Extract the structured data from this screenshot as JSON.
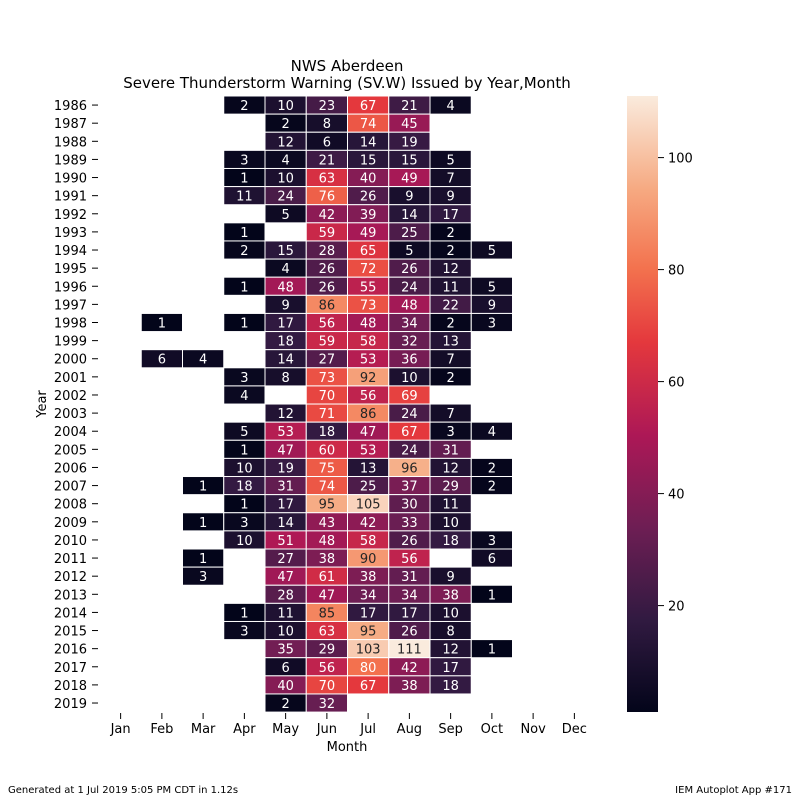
{
  "chart_data": {
    "type": "heatmap",
    "title": "NWS Aberdeen",
    "subtitle": "Severe Thunderstorm Warning (SV.W) Issued by Year,Month",
    "xlabel": "Month",
    "ylabel": "Year",
    "x_categories": [
      "Jan",
      "Feb",
      "Mar",
      "Apr",
      "May",
      "Jun",
      "Jul",
      "Aug",
      "Sep",
      "Oct",
      "Nov",
      "Dec"
    ],
    "y_categories": [
      "1986",
      "1987",
      "1988",
      "1989",
      "1990",
      "1991",
      "1992",
      "1993",
      "1994",
      "1995",
      "1996",
      "1997",
      "1998",
      "1999",
      "2000",
      "2001",
      "2002",
      "2003",
      "2004",
      "2005",
      "2006",
      "2007",
      "2008",
      "2009",
      "2010",
      "2011",
      "2012",
      "2013",
      "2014",
      "2015",
      "2016",
      "2017",
      "2018",
      "2019"
    ],
    "values": [
      [
        null,
        null,
        null,
        2,
        10,
        23,
        67,
        21,
        4,
        null,
        null,
        null
      ],
      [
        null,
        null,
        null,
        null,
        2,
        8,
        74,
        45,
        null,
        null,
        null,
        null
      ],
      [
        null,
        null,
        null,
        null,
        12,
        6,
        14,
        19,
        null,
        null,
        null,
        null
      ],
      [
        null,
        null,
        null,
        3,
        4,
        21,
        15,
        15,
        5,
        null,
        null,
        null
      ],
      [
        null,
        null,
        null,
        1,
        10,
        63,
        40,
        49,
        7,
        null,
        null,
        null
      ],
      [
        null,
        null,
        null,
        11,
        24,
        76,
        26,
        9,
        9,
        null,
        null,
        null
      ],
      [
        null,
        null,
        null,
        null,
        5,
        42,
        39,
        14,
        17,
        null,
        null,
        null
      ],
      [
        null,
        null,
        null,
        1,
        null,
        59,
        49,
        25,
        2,
        null,
        null,
        null
      ],
      [
        null,
        null,
        null,
        2,
        15,
        28,
        65,
        5,
        2,
        5,
        null,
        null
      ],
      [
        null,
        null,
        null,
        null,
        4,
        26,
        72,
        26,
        12,
        null,
        null,
        null
      ],
      [
        null,
        null,
        null,
        1,
        48,
        26,
        55,
        24,
        11,
        5,
        null,
        null
      ],
      [
        null,
        null,
        null,
        null,
        9,
        86,
        73,
        48,
        22,
        9,
        null,
        null
      ],
      [
        null,
        1,
        null,
        1,
        17,
        56,
        48,
        34,
        2,
        3,
        null,
        null
      ],
      [
        null,
        null,
        null,
        null,
        18,
        59,
        58,
        32,
        13,
        null,
        null,
        null
      ],
      [
        null,
        6,
        4,
        null,
        14,
        27,
        53,
        36,
        7,
        null,
        null,
        null
      ],
      [
        null,
        null,
        null,
        3,
        8,
        73,
        92,
        10,
        2,
        null,
        null,
        null
      ],
      [
        null,
        null,
        null,
        4,
        null,
        70,
        56,
        69,
        null,
        null,
        null,
        null
      ],
      [
        null,
        null,
        null,
        null,
        12,
        71,
        86,
        24,
        7,
        null,
        null,
        null
      ],
      [
        null,
        null,
        null,
        5,
        53,
        18,
        47,
        67,
        3,
        4,
        null,
        null
      ],
      [
        null,
        null,
        null,
        1,
        47,
        60,
        53,
        24,
        31,
        null,
        null,
        null
      ],
      [
        null,
        null,
        null,
        10,
        19,
        75,
        13,
        96,
        12,
        2,
        null,
        null
      ],
      [
        null,
        null,
        1,
        18,
        31,
        74,
        25,
        37,
        29,
        2,
        null,
        null
      ],
      [
        null,
        null,
        null,
        1,
        17,
        95,
        105,
        30,
        11,
        null,
        null,
        null
      ],
      [
        null,
        null,
        1,
        3,
        14,
        43,
        42,
        33,
        10,
        null,
        null,
        null
      ],
      [
        null,
        null,
        null,
        10,
        51,
        48,
        58,
        26,
        18,
        3,
        null,
        null
      ],
      [
        null,
        null,
        1,
        null,
        27,
        38,
        90,
        56,
        null,
        6,
        null,
        null
      ],
      [
        null,
        null,
        3,
        null,
        47,
        61,
        38,
        31,
        9,
        null,
        null,
        null
      ],
      [
        null,
        null,
        null,
        null,
        28,
        47,
        34,
        34,
        38,
        1,
        null,
        null
      ],
      [
        null,
        null,
        null,
        1,
        11,
        85,
        17,
        17,
        10,
        null,
        null,
        null
      ],
      [
        null,
        null,
        null,
        3,
        10,
        63,
        95,
        26,
        8,
        null,
        null,
        null
      ],
      [
        null,
        null,
        null,
        null,
        35,
        29,
        103,
        111,
        12,
        1,
        null,
        null
      ],
      [
        null,
        null,
        null,
        null,
        6,
        56,
        80,
        42,
        17,
        null,
        null,
        null
      ],
      [
        null,
        null,
        null,
        null,
        40,
        70,
        67,
        38,
        18,
        null,
        null,
        null
      ],
      [
        null,
        null,
        null,
        null,
        2,
        32,
        null,
        null,
        null,
        null,
        null,
        null
      ]
    ],
    "colormap": "rocket",
    "colorbar": {
      "range": [
        1,
        111
      ],
      "ticks": [
        20,
        40,
        60,
        80,
        100
      ]
    },
    "grid": false,
    "legend": "colorbar-right"
  },
  "footer": {
    "left": "Generated at 1 Jul 2019 5:05 PM CDT in 1.12s",
    "right": "IEM Autoplot App #171"
  }
}
